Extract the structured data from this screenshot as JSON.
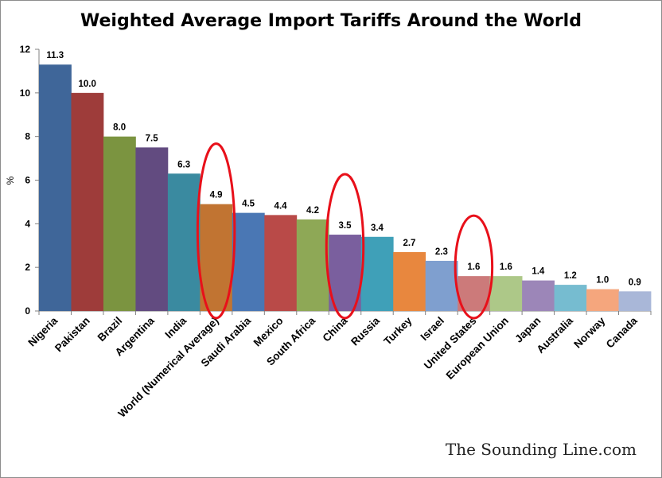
{
  "chart_data": {
    "type": "bar",
    "title": "Weighted Average Import Tariffs Around the World",
    "ylabel": "%",
    "xlabel": "",
    "ylim": [
      0,
      12
    ],
    "yticks": [
      "0",
      "2",
      "4",
      "6",
      "8",
      "10",
      "12"
    ],
    "grid": false,
    "legend": "none",
    "categories": [
      "Nigeria",
      "Pakistan",
      "Brazil",
      "Argentina",
      "India",
      "World (Numerical Average)",
      "Saudi Arabia",
      "Mexico",
      "South Africa",
      "China",
      "Russia",
      "Turkey",
      "Israel",
      "United States",
      "European Union",
      "Japan",
      "Australia",
      "Norway",
      "Canada"
    ],
    "values": [
      11.3,
      10.0,
      8.0,
      7.5,
      6.3,
      4.9,
      4.5,
      4.4,
      4.2,
      3.5,
      3.4,
      2.7,
      2.3,
      1.6,
      1.6,
      1.4,
      1.2,
      1.0,
      0.9
    ],
    "value_labels": [
      "11.3",
      "10.0",
      "8.0",
      "7.5",
      "6.3",
      "4.9",
      "4.5",
      "4.4",
      "4.2",
      "3.5",
      "3.4",
      "2.7",
      "2.3",
      "1.6",
      "1.6",
      "1.4",
      "1.2",
      "1.0",
      "0.9"
    ],
    "colors": [
      "#3f6699",
      "#9e3c3a",
      "#7b9440",
      "#624b80",
      "#3a8aa0",
      "#c17432",
      "#4a77b4",
      "#b94a48",
      "#8ea856",
      "#7a5f9e",
      "#3fa0b8",
      "#e8873e",
      "#7f9fcf",
      "#cc7a7a",
      "#adc888",
      "#9c86b8",
      "#76bcd0",
      "#f5a67d",
      "#a9b7d8"
    ],
    "highlighted": [
      "World (Numerical Average)",
      "China",
      "United States"
    ],
    "highlight_color": "#e8101a"
  },
  "watermark": "The Sounding Line.com"
}
